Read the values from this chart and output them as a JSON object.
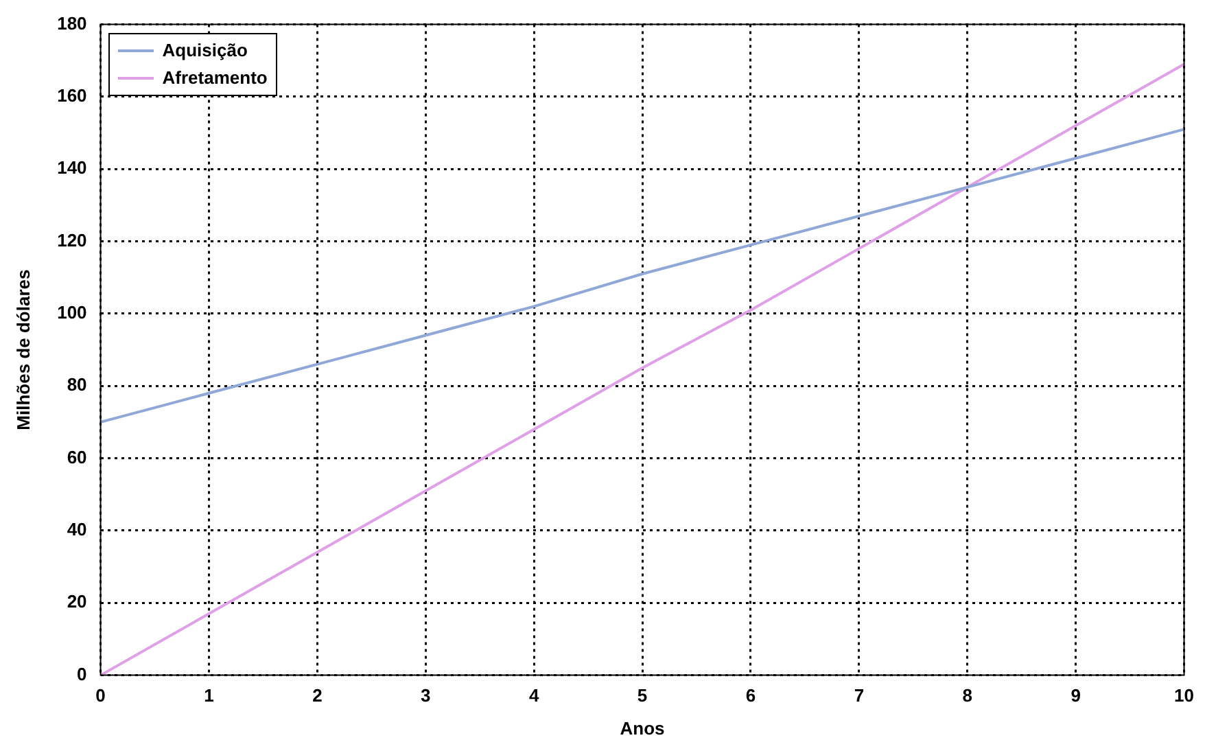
{
  "chart_data": {
    "type": "line",
    "xlabel": "Anos",
    "ylabel": "Milhões de dólares",
    "x": [
      0,
      1,
      2,
      3,
      4,
      5,
      6,
      7,
      8,
      9,
      10
    ],
    "series": [
      {
        "name": "Aquisição",
        "color": "#8fa8d8",
        "values": [
          70,
          78,
          86,
          94,
          102,
          111,
          119,
          127,
          135,
          143,
          151
        ]
      },
      {
        "name": "Afretamento",
        "color": "#e0a0e8",
        "values": [
          0,
          17,
          34,
          51,
          68,
          85,
          101,
          118,
          135,
          152,
          169
        ]
      }
    ],
    "xlim": [
      0,
      10
    ],
    "xticks": [
      0,
      1,
      2,
      3,
      4,
      5,
      6,
      7,
      8,
      9,
      10
    ],
    "ylim": [
      0,
      180
    ],
    "yticks": [
      0,
      20,
      40,
      60,
      80,
      100,
      120,
      140,
      160,
      180
    ],
    "grid": true,
    "legend": "top left",
    "marker": "none",
    "line_style": "solid"
  }
}
